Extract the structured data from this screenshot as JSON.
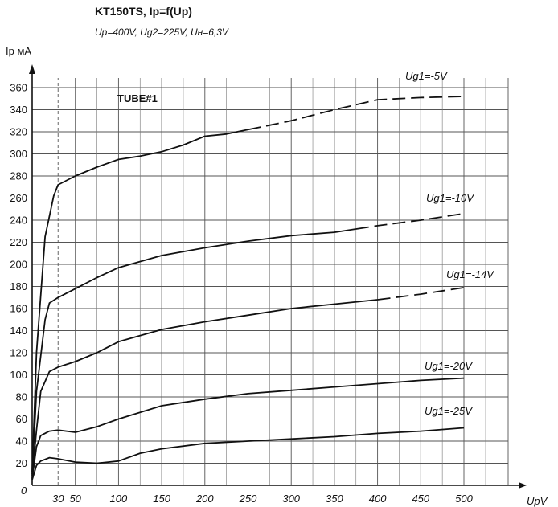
{
  "chart_data": {
    "type": "line",
    "title": "KT150TS, Ip=f(Up)",
    "subtitle": "Up=400V, Ug2=225V, Uн=6,3V",
    "ylabel": "Ip мA",
    "xlabel": "UpV",
    "origin_label": "0",
    "annotation": "TUBE#1",
    "x_ticks": [
      30,
      50,
      100,
      150,
      200,
      250,
      300,
      350,
      400,
      450,
      500
    ],
    "y_ticks": [
      20,
      40,
      60,
      80,
      100,
      120,
      140,
      160,
      180,
      200,
      220,
      240,
      260,
      280,
      300,
      320,
      340,
      360
    ],
    "xlim": [
      0,
      500
    ],
    "ylim": [
      0,
      360
    ],
    "grid": true,
    "series": [
      {
        "name": "Ug1=-5V",
        "x": [
          0,
          5,
          15,
          25,
          30,
          50,
          75,
          100,
          125,
          150,
          175,
          200,
          225,
          250,
          300,
          350,
          400,
          450,
          500
        ],
        "y": [
          12,
          120,
          225,
          262,
          272,
          280,
          288,
          295,
          298,
          302,
          308,
          316,
          318,
          322,
          330,
          340,
          349,
          351,
          352
        ],
        "dashed_from": 250
      },
      {
        "name": "Ug1=-10V",
        "x": [
          0,
          5,
          15,
          20,
          30,
          50,
          75,
          100,
          150,
          200,
          250,
          300,
          350,
          375,
          400,
          450,
          500
        ],
        "y": [
          10,
          85,
          150,
          165,
          170,
          178,
          188,
          197,
          208,
          215,
          221,
          226,
          229,
          232,
          235,
          240,
          246
        ],
        "dashed_from": 375
      },
      {
        "name": "Ug1=-14V",
        "x": [
          0,
          5,
          10,
          20,
          30,
          50,
          75,
          100,
          150,
          200,
          250,
          300,
          350,
          400,
          450,
          500
        ],
        "y": [
          8,
          50,
          85,
          103,
          107,
          112,
          120,
          130,
          141,
          148,
          154,
          160,
          164,
          168,
          173,
          179
        ],
        "dashed_from": 400
      },
      {
        "name": "Ug1=-20V",
        "x": [
          0,
          5,
          10,
          20,
          30,
          50,
          75,
          100,
          150,
          200,
          250,
          300,
          350,
          400,
          450,
          500
        ],
        "y": [
          6,
          35,
          45,
          49,
          50,
          48,
          53,
          60,
          72,
          78,
          83,
          86,
          89,
          92,
          95,
          97
        ]
      },
      {
        "name": "Ug1=-25V",
        "x": [
          0,
          5,
          10,
          20,
          30,
          50,
          75,
          100,
          125,
          150,
          200,
          250,
          300,
          350,
          400,
          450,
          500
        ],
        "y": [
          5,
          18,
          22,
          25,
          24,
          21,
          20,
          22,
          29,
          33,
          38,
          40,
          42,
          44,
          47,
          49,
          52
        ]
      }
    ]
  }
}
